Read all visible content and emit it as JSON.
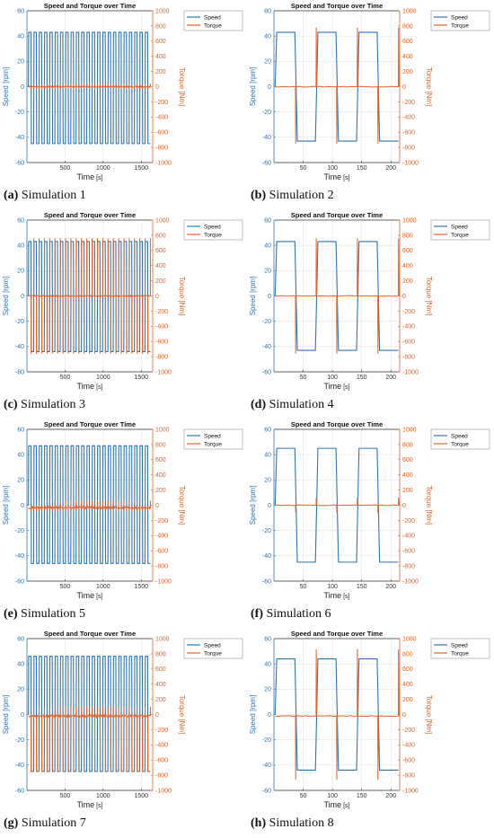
{
  "colors": {
    "speed": "#2e75b6",
    "torque": "#e8622a"
  },
  "chart_data": [
    {
      "type": "line",
      "title": "Speed and Torque over Time",
      "caption_label": "(a)",
      "caption_text": "Simulation 1",
      "xlabel": "Time",
      "xunit": "[s]",
      "ylabel": "Speed [rpm]",
      "y2label": "Torque [Nm]",
      "xlim": [
        0,
        1650
      ],
      "xticks": [
        500,
        1000,
        1500
      ],
      "ylim": [
        -60,
        60
      ],
      "yticks": [
        -60,
        -40,
        -20,
        0,
        20,
        40,
        60
      ],
      "y2lim": [
        -1000,
        1000
      ],
      "y2ticks": [
        -1000,
        -800,
        -600,
        -400,
        -200,
        0,
        200,
        400,
        600,
        800,
        1000
      ],
      "legend": [
        "Speed",
        "Torque"
      ],
      "legend_position": "top-right",
      "series": [
        {
          "name": "Speed",
          "axis": "left",
          "style": "square",
          "cycles": 23,
          "t_start": 20,
          "t_end": 1620,
          "high": 43,
          "low": -45,
          "duty": 0.5
        },
        {
          "name": "Torque",
          "axis": "right",
          "style": "spikes",
          "cycles": 23,
          "t_start": 20,
          "t_end": 1620,
          "baseline": 0,
          "spike_up": 40,
          "spike_down": -40,
          "noise": 15
        }
      ]
    },
    {
      "type": "line",
      "title": "Speed and Torque over Time",
      "caption_label": "(b)",
      "caption_text": "Simulation 2",
      "xlabel": "Time",
      "xunit": "[s]",
      "ylabel": "Speed [rpm]",
      "y2label": "Torque [Nm]",
      "xlim": [
        0,
        215
      ],
      "xticks": [
        50,
        100,
        150,
        200
      ],
      "ylim": [
        -60,
        60
      ],
      "yticks": [
        -60,
        -40,
        -20,
        0,
        20,
        40,
        60
      ],
      "y2lim": [
        -1000,
        1000
      ],
      "y2ticks": [
        -1000,
        -800,
        -600,
        -400,
        -200,
        0,
        200,
        400,
        600,
        800,
        1000
      ],
      "legend": [
        "Speed",
        "Torque"
      ],
      "legend_position": "top-right",
      "series": [
        {
          "name": "Speed",
          "axis": "left",
          "style": "square",
          "cycles": 3,
          "t_start": 2,
          "t_end": 213,
          "high": 43,
          "low": -43,
          "duty": 0.5
        },
        {
          "name": "Torque",
          "axis": "right",
          "style": "spikes",
          "cycles": 3,
          "t_start": 2,
          "t_end": 213,
          "baseline": 0,
          "spike_up": 780,
          "spike_down": -750,
          "noise": 10
        }
      ]
    },
    {
      "type": "line",
      "title": "Speed and Torque over Time",
      "caption_label": "(c)",
      "caption_text": "Simulation 3",
      "xlabel": "Time",
      "xunit": "[s]",
      "ylabel": "Speed [rpm]",
      "y2label": "Torque [Nm]",
      "xlim": [
        0,
        1650
      ],
      "xticks": [
        500,
        1000,
        1500
      ],
      "ylim": [
        -60,
        60
      ],
      "yticks": [
        -60,
        -40,
        -20,
        0,
        20,
        40,
        60
      ],
      "y2lim": [
        -1000,
        1000
      ],
      "y2ticks": [
        -1000,
        -800,
        -600,
        -400,
        -200,
        0,
        200,
        400,
        600,
        800,
        1000
      ],
      "legend": [
        "Speed",
        "Torque"
      ],
      "legend_position": "top-right",
      "series": [
        {
          "name": "Speed",
          "axis": "left",
          "style": "square",
          "cycles": 23,
          "t_start": 20,
          "t_end": 1620,
          "high": 43,
          "low": -44,
          "duty": 0.5
        },
        {
          "name": "Torque",
          "axis": "right",
          "style": "spikes",
          "cycles": 23,
          "t_start": 20,
          "t_end": 1620,
          "baseline": 0,
          "spike_up": 760,
          "spike_down": -760,
          "noise": 15
        }
      ]
    },
    {
      "type": "line",
      "title": "Speed and Torque over Time",
      "caption_label": "(d)",
      "caption_text": "Simulation 4",
      "xlabel": "Time",
      "xunit": "[s]",
      "ylabel": "Speed [rpm]",
      "y2label": "Torque [Nm]",
      "xlim": [
        0,
        215
      ],
      "xticks": [
        50,
        100,
        150,
        200
      ],
      "ylim": [
        -60,
        60
      ],
      "yticks": [
        -60,
        -40,
        -20,
        0,
        20,
        40,
        60
      ],
      "y2lim": [
        -1000,
        1000
      ],
      "y2ticks": [
        -1000,
        -800,
        -600,
        -400,
        -200,
        0,
        200,
        400,
        600,
        800,
        1000
      ],
      "legend": [
        "Speed",
        "Torque"
      ],
      "legend_position": "top-right",
      "series": [
        {
          "name": "Speed",
          "axis": "left",
          "style": "square",
          "cycles": 3,
          "t_start": 2,
          "t_end": 213,
          "high": 43,
          "low": -43,
          "duty": 0.5
        },
        {
          "name": "Torque",
          "axis": "right",
          "style": "spikes",
          "cycles": 3,
          "t_start": 2,
          "t_end": 213,
          "baseline": 0,
          "spike_up": 760,
          "spike_down": -760,
          "noise": 10
        }
      ]
    },
    {
      "type": "line",
      "title": "Speed and Torque over Time",
      "caption_label": "(e)",
      "caption_text": "Simulation 5",
      "xlabel": "Time",
      "xunit": "[s]",
      "ylabel": "Speed [rpm]",
      "y2label": "Torque [Nm]",
      "xlim": [
        0,
        1650
      ],
      "xticks": [
        500,
        1000,
        1500
      ],
      "ylim": [
        -60,
        60
      ],
      "yticks": [
        -60,
        -40,
        -20,
        0,
        20,
        40,
        60
      ],
      "y2lim": [
        -1000,
        1000
      ],
      "y2ticks": [
        -1000,
        -800,
        -600,
        -400,
        -200,
        0,
        200,
        400,
        600,
        800,
        1000
      ],
      "legend": [
        "Speed",
        "Torque"
      ],
      "legend_position": "top-right",
      "series": [
        {
          "name": "Speed",
          "axis": "left",
          "style": "square",
          "cycles": 23,
          "t_start": 20,
          "t_end": 1620,
          "high": 47,
          "low": -46,
          "duty": 0.5
        },
        {
          "name": "Torque",
          "axis": "right",
          "style": "spikes",
          "cycles": 23,
          "t_start": 20,
          "t_end": 1620,
          "baseline": -30,
          "spike_up": 60,
          "spike_down": -80,
          "noise": 30
        }
      ]
    },
    {
      "type": "line",
      "title": "Speed and Torque over Time",
      "caption_label": "(f)",
      "caption_text": "Simulation 6",
      "xlabel": "Time",
      "xunit": "[s]",
      "ylabel": "Speed [rpm]",
      "y2label": "Torque [Nm]",
      "xlim": [
        0,
        215
      ],
      "xticks": [
        50,
        100,
        150,
        200
      ],
      "ylim": [
        -60,
        60
      ],
      "yticks": [
        -60,
        -40,
        -20,
        0,
        20,
        40,
        60
      ],
      "y2lim": [
        -1000,
        1000
      ],
      "y2ticks": [
        -1000,
        -800,
        -600,
        -400,
        -200,
        0,
        200,
        400,
        600,
        800,
        1000
      ],
      "legend": [
        "Speed",
        "Torque"
      ],
      "legend_position": "top-right",
      "series": [
        {
          "name": "Speed",
          "axis": "left",
          "style": "square",
          "cycles": 3,
          "t_start": 2,
          "t_end": 213,
          "high": 45,
          "low": -45,
          "duty": 0.5
        },
        {
          "name": "Torque",
          "axis": "right",
          "style": "spikes",
          "cycles": 3,
          "t_start": 2,
          "t_end": 213,
          "baseline": 0,
          "spike_up": 100,
          "spike_down": -100,
          "noise": 10
        }
      ]
    },
    {
      "type": "line",
      "title": "Speed and Torque over Time",
      "caption_label": "(g)",
      "caption_text": "Simulation 7",
      "xlabel": "Time",
      "xunit": "[s]",
      "ylabel": "Speed [rpm]",
      "y2label": "Torque [Nm]",
      "xlim": [
        0,
        1650
      ],
      "xticks": [
        500,
        1000,
        1500
      ],
      "ylim": [
        -60,
        60
      ],
      "yticks": [
        -60,
        -40,
        -20,
        0,
        20,
        40,
        60
      ],
      "y2lim": [
        -1000,
        1000
      ],
      "y2ticks": [
        -1000,
        -800,
        -600,
        -400,
        -200,
        0,
        200,
        400,
        600,
        800,
        1000
      ],
      "legend": [
        "Speed",
        "Torque"
      ],
      "legend_position": "top-right",
      "series": [
        {
          "name": "Speed",
          "axis": "left",
          "style": "square",
          "cycles": 23,
          "t_start": 20,
          "t_end": 1620,
          "high": 46,
          "low": -45,
          "duty": 0.5
        },
        {
          "name": "Torque",
          "axis": "right",
          "style": "spikes",
          "cycles": 23,
          "t_start": 20,
          "t_end": 1620,
          "baseline": -20,
          "spike_up": 100,
          "spike_down": -760,
          "noise": 30
        }
      ]
    },
    {
      "type": "line",
      "title": "Speed and Torque over Time",
      "caption_label": "(h)",
      "caption_text": "Simulation 8",
      "xlabel": "Time",
      "xunit": "[s]",
      "ylabel": "Speed [rpm]",
      "y2label": "Torque [Nm]",
      "xlim": [
        0,
        215
      ],
      "xticks": [
        50,
        100,
        150,
        200
      ],
      "ylim": [
        -60,
        60
      ],
      "yticks": [
        -60,
        -40,
        -20,
        0,
        20,
        40,
        60
      ],
      "y2lim": [
        -1000,
        1000
      ],
      "y2ticks": [
        -1000,
        -800,
        -600,
        -400,
        -200,
        0,
        200,
        400,
        600,
        800,
        1000
      ],
      "legend": [
        "Speed",
        "Torque"
      ],
      "legend_position": "top-right",
      "series": [
        {
          "name": "Speed",
          "axis": "left",
          "style": "square",
          "cycles": 3,
          "t_start": 2,
          "t_end": 213,
          "high": 44,
          "low": -44,
          "duty": 0.5
        },
        {
          "name": "Torque",
          "axis": "right",
          "style": "spikes",
          "cycles": 3,
          "t_start": 2,
          "t_end": 213,
          "baseline": -20,
          "spike_up": 860,
          "spike_down": -860,
          "noise": 10
        }
      ]
    }
  ]
}
